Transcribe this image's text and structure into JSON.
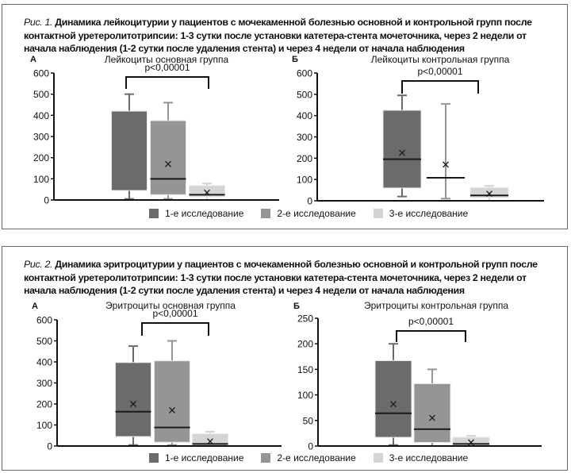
{
  "colors": {
    "study1": "#6b6b6e",
    "study2": "#959597",
    "study3": "#d4d4d6",
    "axis": "#111111",
    "frame": "#6a6a6a"
  },
  "figures": [
    {
      "caption_label": "Рис. 1.",
      "caption_text": "Динамика лейкоцитурии у пациентов с мочекаменной болезнью основной и контрольной групп после контактной уретеролитотрипсии: 1-3 сутки после установки катетера-стента мочеточника, через 2 недели от начала наблюдения (1-2 сутки после удаления стента) и через 4 недели от начала наблюдения",
      "legend": [
        "1-е исследование",
        "2-е исследование",
        "3-е исследование"
      ]
    },
    {
      "caption_label": "Рис. 2.",
      "caption_text": "Динамика эритроцитурии у пациентов с мочекаменной болезнью основной и контрольной групп после контактной уретеролитотрипсии: 1-3 сутки после установки катетера-стента мочеточника, через 2 недели от начала наблюдения (1-2 сутки после удаления стента) и через 4 недели от начала наблюдения",
      "legend": [
        "1-е исследование",
        "2-е исследование",
        "3-е исследование"
      ]
    }
  ],
  "chart_data": [
    {
      "type": "box",
      "panel": "А",
      "title": "Лейкоциты основная группа",
      "annotation": "p<0,00001",
      "ylim": [
        0,
        600
      ],
      "yticks": [
        0,
        100,
        200,
        300,
        400,
        500,
        600
      ],
      "series": [
        {
          "name": "1-е исследование",
          "whisker_low": 5,
          "q1": 45,
          "median": null,
          "mean": null,
          "q3": 420,
          "whisker_high": 500
        },
        {
          "name": "2-е исследование",
          "whisker_low": 5,
          "q1": 25,
          "median": 100,
          "mean": 170,
          "q3": 375,
          "whisker_high": 460
        },
        {
          "name": "3-е исследование",
          "whisker_low": 0,
          "q1": 15,
          "median": 25,
          "mean": 35,
          "q3": 68,
          "whisker_high": 78
        }
      ]
    },
    {
      "type": "box",
      "panel": "Б",
      "title": "Лейкоциты контрольная группа",
      "annotation": "p<0,00001",
      "ylim": [
        0,
        600
      ],
      "yticks": [
        0,
        100,
        200,
        300,
        400,
        500,
        600
      ],
      "series": [
        {
          "name": "1-е исследование",
          "whisker_low": 20,
          "q1": 60,
          "median": 195,
          "mean": 225,
          "q3": 425,
          "whisker_high": 495
        },
        {
          "name": "2-е исследование",
          "whisker_low": 10,
          "q1": null,
          "median": 108,
          "mean": 170,
          "q3": null,
          "whisker_high": 455
        },
        {
          "name": "3-е исследование",
          "whisker_low": 0,
          "q1": 15,
          "median": 25,
          "mean": 33,
          "q3": 62,
          "whisker_high": 70
        }
      ]
    },
    {
      "type": "box",
      "panel": "А",
      "title": "Эритроциты основная группа",
      "annotation": "p<0,00001",
      "ylim": [
        0,
        600
      ],
      "yticks": [
        0,
        100,
        200,
        300,
        400,
        500,
        600
      ],
      "series": [
        {
          "name": "1-е исследование",
          "whisker_low": 5,
          "q1": 45,
          "median": 163,
          "mean": 200,
          "q3": 397,
          "whisker_high": 475
        },
        {
          "name": "2-е исследование",
          "whisker_low": 5,
          "q1": 18,
          "median": 88,
          "mean": 170,
          "q3": 405,
          "whisker_high": 500
        },
        {
          "name": "3-е исследование",
          "whisker_low": 0,
          "q1": 2,
          "median": 10,
          "mean": 22,
          "q3": 58,
          "whisker_high": 68
        }
      ]
    },
    {
      "type": "box",
      "panel": "Б",
      "title": "Эритроциты контрольная группа",
      "annotation": "p<0,00001",
      "ylim": [
        0,
        250
      ],
      "yticks": [
        0,
        50,
        100,
        150,
        200,
        250
      ],
      "series": [
        {
          "name": "1-е исследование",
          "whisker_low": 2,
          "q1": 17,
          "median": 64,
          "mean": 82,
          "q3": 167,
          "whisker_high": 200
        },
        {
          "name": "2-е исследование",
          "whisker_low": 0,
          "q1": 7,
          "median": 33,
          "mean": 55,
          "q3": 122,
          "whisker_high": 150
        },
        {
          "name": "3-е исследование",
          "whisker_low": 0,
          "q1": 2,
          "median": 4,
          "mean": 7,
          "q3": 17,
          "whisker_high": 20
        }
      ]
    }
  ]
}
